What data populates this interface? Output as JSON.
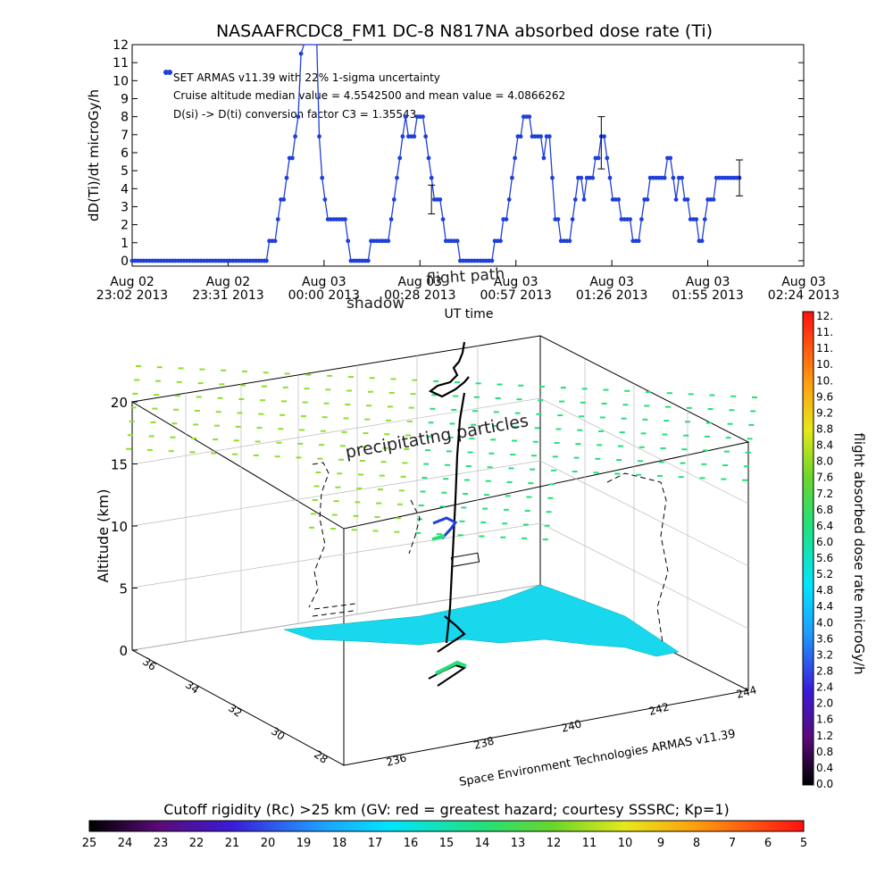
{
  "chart_data": [
    {
      "type": "line",
      "title": "NASAAFRCDC8_FM1 DC-8   N817NA absorbed dose rate (Ti)",
      "ylabel": "dD(Ti)/dt microGy/h",
      "xlabel": "UT time",
      "ylim": [
        -0.3,
        12
      ],
      "yticks": [
        0,
        1,
        2,
        3,
        4,
        5,
        6,
        7,
        8,
        9,
        10,
        11,
        12
      ],
      "x_ticks": [
        {
          "line1": "Aug 02",
          "line2": "23:02 2013"
        },
        {
          "line1": "Aug 02",
          "line2": "23:31 2013"
        },
        {
          "line1": "Aug 03",
          "line2": "00:00 2013"
        },
        {
          "line1": "Aug 03",
          "line2": "00:28 2013"
        },
        {
          "line1": "Aug 03",
          "line2": "00:57 2013"
        },
        {
          "line1": "Aug 03",
          "line2": "01:26 2013"
        },
        {
          "line1": "Aug 03",
          "line2": "01:55 2013"
        },
        {
          "line1": "Aug 03",
          "line2": "02:24 2013"
        }
      ],
      "legend_entry": "SET ARMAS v11.39 with 22% 1-sigma uncertainty",
      "annotations": [
        "Cruise altitude median value = 4.5542500 and mean value = 4.0866262",
        "D(si) -> D(ti) conversion factor C3 = 1.35543"
      ],
      "overlay_labels": [
        "shadow",
        "flight path"
      ],
      "series_color": "#1f3fd9",
      "series": [
        {
          "values": [
            [
              0.0,
              0
            ],
            [
              0.6,
              0
            ],
            [
              1.2,
              0
            ],
            [
              1.8,
              0
            ],
            [
              2.4,
              0
            ],
            [
              3.0,
              0
            ],
            [
              3.6,
              0
            ],
            [
              4.2,
              0
            ],
            [
              4.8,
              0
            ],
            [
              5.4,
              0
            ],
            [
              6.0,
              0
            ],
            [
              6.6,
              0
            ],
            [
              7.2,
              0
            ],
            [
              7.8,
              0
            ],
            [
              8.4,
              0
            ],
            [
              9.0,
              0
            ],
            [
              9.6,
              0
            ],
            [
              10.2,
              0
            ],
            [
              10.8,
              0
            ],
            [
              11.4,
              0
            ],
            [
              12.0,
              0
            ],
            [
              12.6,
              0
            ],
            [
              13.2,
              0
            ],
            [
              13.8,
              0
            ],
            [
              14.4,
              0
            ],
            [
              15.0,
              0
            ],
            [
              15.6,
              0
            ],
            [
              16.2,
              0
            ],
            [
              16.8,
              0
            ],
            [
              17.4,
              0
            ],
            [
              18.0,
              0
            ],
            [
              18.6,
              0
            ],
            [
              19.2,
              0
            ],
            [
              19.8,
              0
            ],
            [
              20.4,
              0
            ],
            [
              21.0,
              0
            ],
            [
              21.6,
              0
            ],
            [
              22.2,
              0
            ],
            [
              22.8,
              0
            ],
            [
              23.4,
              0
            ],
            [
              24.0,
              0
            ],
            [
              24.6,
              0
            ],
            [
              25.2,
              0
            ],
            [
              25.8,
              0
            ],
            [
              26.4,
              0
            ],
            [
              27.0,
              0
            ],
            [
              27.6,
              0
            ],
            [
              28.0,
              0
            ],
            [
              28.6,
              1.1
            ],
            [
              29.2,
              1.1
            ],
            [
              29.8,
              1.1
            ],
            [
              30.4,
              2.3
            ],
            [
              31.0,
              3.4
            ],
            [
              31.6,
              3.4
            ],
            [
              32.2,
              4.6
            ],
            [
              32.8,
              5.7
            ],
            [
              33.4,
              5.7
            ],
            [
              34.0,
              6.9
            ],
            [
              34.6,
              8.0
            ],
            [
              35.2,
              11.5
            ],
            [
              35.8,
              12.0
            ],
            [
              38.5,
              12.0
            ],
            [
              39.0,
              6.9
            ],
            [
              39.6,
              4.6
            ],
            [
              40.2,
              3.4
            ],
            [
              40.8,
              2.3
            ],
            [
              41.4,
              2.3
            ],
            [
              42.0,
              2.3
            ],
            [
              42.6,
              2.3
            ],
            [
              43.2,
              2.3
            ],
            [
              43.8,
              2.3
            ],
            [
              44.4,
              2.3
            ],
            [
              45.0,
              1.1
            ],
            [
              45.6,
              0
            ],
            [
              46.2,
              0
            ],
            [
              46.8,
              0
            ],
            [
              47.4,
              0
            ],
            [
              48.0,
              0
            ],
            [
              48.6,
              0
            ],
            [
              49.2,
              0
            ],
            [
              49.8,
              1.1
            ],
            [
              50.4,
              1.1
            ],
            [
              51.0,
              1.1
            ],
            [
              51.6,
              1.1
            ],
            [
              52.2,
              1.1
            ],
            [
              52.8,
              1.1
            ],
            [
              53.4,
              1.1
            ],
            [
              54.0,
              2.3
            ],
            [
              54.6,
              3.4
            ],
            [
              55.2,
              4.6
            ],
            [
              55.8,
              5.7
            ],
            [
              56.4,
              6.9
            ],
            [
              57.0,
              8.0
            ],
            [
              57.6,
              6.9
            ],
            [
              58.2,
              6.9
            ],
            [
              58.8,
              6.9
            ],
            [
              59.4,
              8.0
            ],
            [
              60.0,
              8.0
            ],
            [
              60.6,
              8.0
            ],
            [
              61.2,
              6.9
            ],
            [
              61.8,
              5.7
            ],
            [
              62.4,
              4.6
            ],
            [
              63.0,
              3.4
            ],
            [
              63.6,
              3.4
            ],
            [
              64.2,
              3.4
            ],
            [
              64.8,
              2.3
            ],
            [
              65.4,
              1.1
            ],
            [
              66.0,
              1.1
            ],
            [
              66.6,
              1.1
            ],
            [
              67.2,
              1.1
            ],
            [
              67.8,
              1.1
            ],
            [
              68.4,
              0
            ],
            [
              69.0,
              0
            ],
            [
              69.6,
              0
            ],
            [
              70.2,
              0
            ],
            [
              70.8,
              0
            ],
            [
              71.4,
              0
            ],
            [
              72.0,
              0
            ],
            [
              72.6,
              0
            ],
            [
              73.2,
              0
            ],
            [
              73.8,
              0
            ],
            [
              74.4,
              0
            ],
            [
              75.0,
              0
            ],
            [
              75.6,
              1.1
            ],
            [
              76.2,
              1.1
            ],
            [
              76.8,
              1.1
            ],
            [
              77.4,
              2.3
            ],
            [
              78.0,
              2.3
            ],
            [
              78.6,
              3.4
            ],
            [
              79.2,
              4.6
            ],
            [
              79.8,
              5.7
            ],
            [
              80.4,
              6.9
            ],
            [
              81.0,
              6.9
            ],
            [
              81.6,
              8.0
            ],
            [
              82.2,
              8.0
            ],
            [
              82.8,
              8.0
            ],
            [
              83.4,
              6.9
            ],
            [
              84.0,
              6.9
            ],
            [
              84.6,
              6.9
            ],
            [
              85.2,
              6.9
            ],
            [
              85.8,
              5.7
            ],
            [
              86.4,
              6.9
            ],
            [
              87.0,
              6.9
            ],
            [
              87.6,
              4.6
            ],
            [
              88.2,
              2.3
            ],
            [
              88.8,
              2.3
            ],
            [
              89.4,
              1.1
            ],
            [
              90.0,
              1.1
            ],
            [
              90.6,
              1.1
            ],
            [
              91.2,
              1.1
            ],
            [
              91.8,
              2.3
            ],
            [
              92.4,
              3.4
            ],
            [
              93.0,
              4.6
            ],
            [
              93.6,
              4.6
            ],
            [
              94.2,
              3.4
            ],
            [
              94.8,
              4.6
            ],
            [
              95.4,
              4.6
            ],
            [
              96.0,
              4.6
            ],
            [
              96.6,
              5.7
            ],
            [
              97.2,
              5.7
            ],
            [
              97.8,
              6.9
            ],
            [
              98.4,
              6.9
            ],
            [
              99.0,
              5.7
            ],
            [
              99.6,
              4.6
            ],
            [
              100.2,
              3.4
            ],
            [
              100.8,
              3.4
            ],
            [
              101.4,
              3.4
            ],
            [
              102.0,
              2.3
            ],
            [
              102.6,
              2.3
            ],
            [
              103.2,
              2.3
            ],
            [
              103.8,
              2.3
            ],
            [
              104.4,
              1.1
            ],
            [
              105.0,
              1.1
            ],
            [
              105.6,
              1.1
            ],
            [
              106.2,
              2.3
            ],
            [
              106.8,
              3.4
            ],
            [
              107.4,
              3.4
            ],
            [
              108.0,
              4.6
            ],
            [
              108.6,
              4.6
            ],
            [
              109.2,
              4.6
            ],
            [
              109.8,
              4.6
            ],
            [
              110.4,
              4.6
            ],
            [
              111.0,
              4.6
            ],
            [
              111.6,
              5.7
            ],
            [
              112.2,
              5.7
            ],
            [
              112.8,
              4.6
            ],
            [
              113.4,
              3.4
            ],
            [
              114.0,
              4.6
            ],
            [
              114.6,
              4.6
            ],
            [
              115.2,
              3.4
            ],
            [
              115.8,
              3.4
            ],
            [
              116.4,
              2.3
            ],
            [
              117.0,
              2.3
            ],
            [
              117.6,
              2.3
            ],
            [
              118.2,
              1.1
            ],
            [
              118.8,
              1.1
            ],
            [
              119.4,
              2.3
            ],
            [
              120.0,
              3.4
            ],
            [
              120.6,
              3.4
            ],
            [
              121.2,
              3.4
            ],
            [
              121.8,
              4.6
            ],
            [
              122.4,
              4.6
            ],
            [
              123.0,
              4.6
            ],
            [
              123.6,
              4.6
            ],
            [
              124.2,
              4.6
            ],
            [
              124.8,
              4.6
            ],
            [
              125.4,
              4.6
            ],
            [
              126.0,
              4.6
            ],
            [
              126.6,
              4.6
            ]
          ],
          "error_bars": [
            {
              "x": 62.4,
              "y": 3.4,
              "low": 2.6,
              "high": 4.2
            },
            {
              "x": 97.8,
              "y": 6.3,
              "low": 5.1,
              "high": 8.0
            },
            {
              "x": 126.6,
              "y": 4.6,
              "low": 3.6,
              "high": 5.6
            }
          ]
        }
      ]
    },
    {
      "type": "scatter",
      "subtype": "3d",
      "zlabel": "Altitude (km)",
      "zticks": [
        0,
        5,
        10,
        15,
        20
      ],
      "lat_ticks": [
        "28",
        "30",
        "32",
        "34",
        "36"
      ],
      "lon_ticks": [
        "236",
        "238",
        "240",
        "242",
        "244"
      ],
      "xlabel": "Space Environment Technologies ARMAS v11.39",
      "annotation": "precipitating particles",
      "colorbar": {
        "label": "flight absorbed dose rate microGy/h",
        "ticks": [
          "12.",
          "11.",
          "11.",
          "10.",
          "10.",
          "9.6",
          "9.2",
          "8.8",
          "8.4",
          "8.0",
          "7.6",
          "7.2",
          "6.8",
          "6.4",
          "6.0",
          "5.6",
          "5.2",
          "4.8",
          "4.4",
          "4.0",
          "3.6",
          "3.2",
          "2.8",
          "2.4",
          "2.0",
          "1.6",
          "1.2",
          "0.8",
          "0.4",
          "0.0"
        ]
      }
    },
    {
      "type": "heatmap",
      "title": "Cutoff rigidity (Rc) >25 km (GV: red = greatest hazard; courtesy SSSRC; Kp=1)",
      "ticks": [
        "25",
        "24",
        "23",
        "22",
        "21",
        "20",
        "19",
        "18",
        "17",
        "16",
        "15",
        "14",
        "13",
        "12",
        "11",
        "10",
        "9",
        "8",
        "7",
        "6",
        "5"
      ]
    }
  ]
}
